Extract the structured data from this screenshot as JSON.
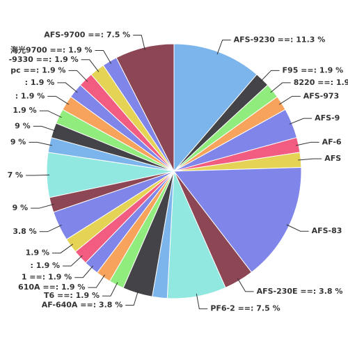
{
  "chart_data": {
    "type": "pie",
    "categories": [
      "AFS-9230 ==: 11.3 %",
      "F95 ==: 1.9 %",
      "8220 ==: 1.9",
      "AFS-973",
      "AFS-9",
      "AF-6",
      "AFS",
      "AFS-83",
      "AFS-230E ==: 3.8 %",
      "PF6-2 ==: 7.5 %",
      null,
      "AF-640A ==: 3.8 %",
      "T6 ==: 1.9 %",
      "610A ==: 1.9 %",
      "1 ==: 1.9 %",
      ": 1.9 %",
      "1.9 %",
      "3.8 %",
      "9 %",
      "7 %",
      "9 %",
      "9 %",
      "1.9 %",
      ": 1.9 %",
      ": 1.9 %",
      "pc ==: 1.9 %",
      "-9330 ==: 1.9 %",
      "海光9700 ==: 1.9 %",
      "AFS-9700 ==: 7.5 %"
    ],
    "values": [
      11.3,
      1.9,
      1.9,
      1.9,
      3.8,
      1.9,
      1.9,
      15.1,
      3.8,
      7.5,
      1.9,
      3.8,
      1.9,
      1.9,
      1.9,
      1.9,
      1.9,
      3.8,
      1.9,
      5.7,
      1.9,
      1.9,
      1.9,
      1.9,
      1.9,
      1.9,
      1.9,
      1.9,
      7.5
    ],
    "colors": [
      "#7cb5ec",
      "#434348",
      "#90ed7d",
      "#f7a35c",
      "#8085e9",
      "#f15c80",
      "#e4d354",
      "#8085e9",
      "#8d4653",
      "#91e8e1",
      "#7cb5ec",
      "#434348",
      "#90ed7d",
      "#f7a35c",
      "#8085e9",
      "#f15c80",
      "#e4d354",
      "#8085e9",
      "#8d4653",
      "#91e8e1",
      "#7cb5ec",
      "#434348",
      "#90ed7d",
      "#f7a35c",
      "#8085e9",
      "#f15c80",
      "#e4d354",
      "#8085e9",
      "#8d4653"
    ]
  }
}
